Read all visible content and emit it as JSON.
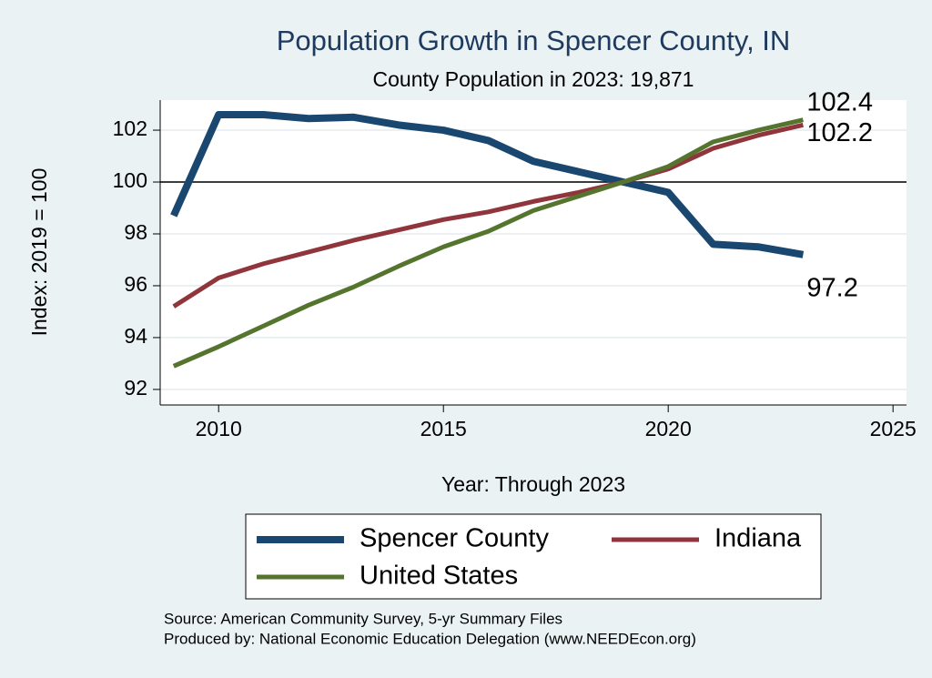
{
  "chart_data": {
    "type": "line",
    "title": "Population Growth in Spencer County, IN",
    "subtitle": "County Population in 2023: 19,871",
    "x_label": "Year: Through 2023",
    "y_label": "Index: 2019 = 100",
    "x": [
      2009,
      2010,
      2011,
      2012,
      2013,
      2014,
      2015,
      2016,
      2017,
      2018,
      2019,
      2020,
      2021,
      2022,
      2023
    ],
    "series": [
      {
        "name": "Spencer  County",
        "color": "#1a476f",
        "values": [
          98.7,
          102.6,
          102.6,
          102.45,
          102.5,
          102.2,
          102.0,
          101.6,
          100.8,
          100.4,
          100.0,
          99.6,
          97.6,
          97.5,
          97.2
        ]
      },
      {
        "name": "Indiana",
        "color": "#90353b",
        "values": [
          95.2,
          96.3,
          96.85,
          97.3,
          97.75,
          98.15,
          98.55,
          98.85,
          99.25,
          99.6,
          100.0,
          100.5,
          101.3,
          101.8,
          102.2
        ]
      },
      {
        "name": "United States",
        "color": "#55752f",
        "values": [
          92.9,
          93.65,
          94.45,
          95.25,
          95.95,
          96.75,
          97.5,
          98.1,
          98.9,
          99.45,
          100.0,
          100.6,
          101.55,
          102.0,
          102.4
        ]
      }
    ],
    "xlim": [
      2008.7,
      2025.3
    ],
    "xticks": [
      2010,
      2015,
      2020,
      2025
    ],
    "ylim": [
      91.4,
      103.16
    ],
    "yticks": [
      92,
      94,
      96,
      98,
      100,
      102
    ],
    "reference_line": 100,
    "grid": true,
    "source": "Source: American Community Survey, 5-yr Summary Files",
    "produced_by": "Produced by: National Economic Education Delegation (www.NEEDEcon.org)"
  }
}
